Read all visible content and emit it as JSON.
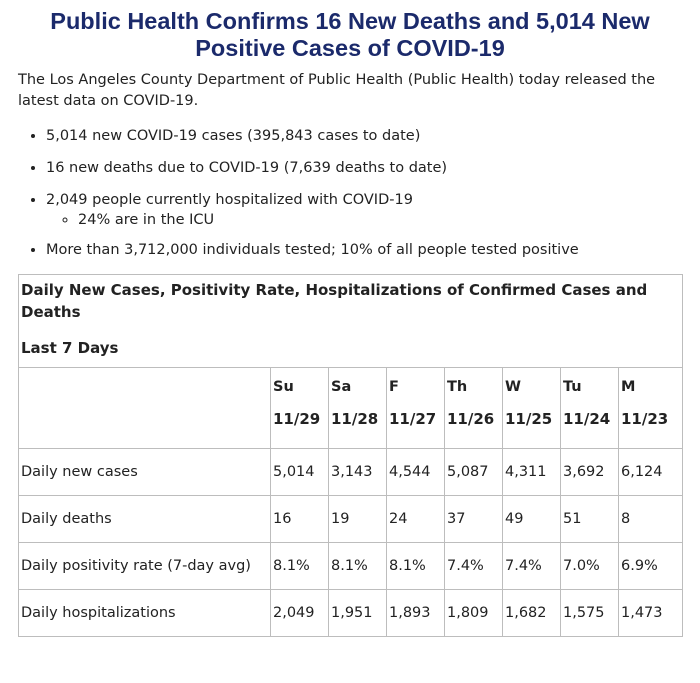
{
  "title": "Public Health Confirms 16 New Deaths and 5,014 New Positive Cases of COVID-19",
  "intro": "The Los Angeles County Department of Public Health (Public Health) today released the latest data on COVID-19.",
  "bullets": {
    "cases": "5,014 new COVID-19 cases (395,843 cases to date)",
    "deaths": "16 new deaths due to COVID-19 (7,639 deaths to date)",
    "hospitalized": "2,049 people currently hospitalized with COVID-19",
    "icu": "24% are in the ICU",
    "tested": "More than 3,712,000 individuals tested; 10% of all people tested positive"
  },
  "table": {
    "title": "Daily New Cases, Positivity Rate, Hospitalizations of Confirmed Cases and Deaths",
    "subtitle": "Last 7 Days",
    "days": [
      {
        "abbr": "Su",
        "date": "11/29"
      },
      {
        "abbr": "Sa",
        "date": "11/28"
      },
      {
        "abbr": "F",
        "date": "11/27"
      },
      {
        "abbr": "Th",
        "date": "11/26"
      },
      {
        "abbr": "W",
        "date": "11/25"
      },
      {
        "abbr": "Tu",
        "date": "11/24"
      },
      {
        "abbr": "M",
        "date": "11/23"
      }
    ],
    "rows": [
      {
        "label": "Daily new cases",
        "values": [
          "5,014",
          "3,143",
          "4,544",
          "5,087",
          "4,311",
          "3,692",
          "6,124"
        ]
      },
      {
        "label": "Daily deaths",
        "values": [
          "16",
          "19",
          "24",
          "37",
          "49",
          "51",
          "8"
        ]
      },
      {
        "label": "Daily positivity rate (7-day avg)",
        "values": [
          "8.1%",
          "8.1%",
          "8.1%",
          "7.4%",
          "7.4%",
          "7.0%",
          "6.9%"
        ]
      },
      {
        "label": "Daily hospitalizations",
        "values": [
          "2,049",
          "1,951",
          "1,893",
          "1,809",
          "1,682",
          "1,575",
          "1,473"
        ]
      }
    ]
  }
}
